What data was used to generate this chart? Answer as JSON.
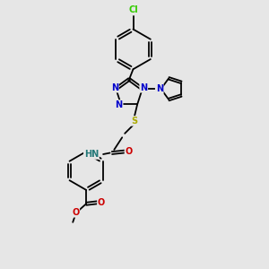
{
  "bg_color": "#e6e6e6",
  "atom_colors": {
    "C": "#000000",
    "N": "#0000cc",
    "O": "#cc0000",
    "S": "#aaaa00",
    "Cl": "#33cc00",
    "H": "#227777"
  },
  "bond_color": "#000000",
  "figsize": [
    3.0,
    3.0
  ],
  "dpi": 100
}
